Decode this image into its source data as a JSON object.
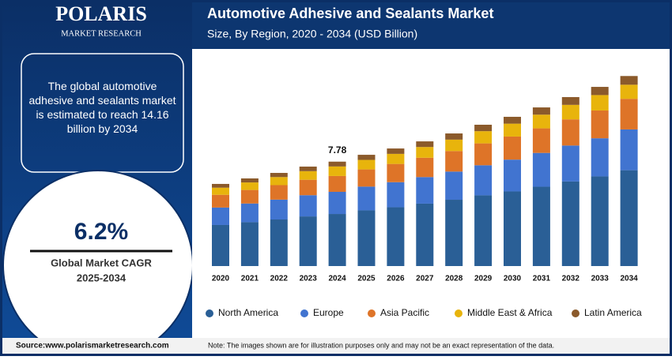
{
  "brand": {
    "name": "POLARIS",
    "tagline": "MARKET RESEARCH"
  },
  "summary": "The global automotive adhesive and sealants market is estimated to reach 14.16 billion by 2034",
  "cagr": {
    "value": "6.2%",
    "label": "Global Market CAGR",
    "period": "2025-2034"
  },
  "source": "Source:www.polarismarketresearch.com",
  "note": "Note: The images shown are for illustration purposes only and may not be an exact representation of the data.",
  "chart_data": {
    "type": "stacked-bar",
    "title": "Automotive Adhesive and Sealants Market",
    "subtitle": "Size, By Region, 2020 - 2034 (USD Billion)",
    "categories": [
      "2020",
      "2021",
      "2022",
      "2023",
      "2024",
      "2025",
      "2026",
      "2027",
      "2028",
      "2029",
      "2030",
      "2031",
      "2032",
      "2033",
      "2034"
    ],
    "series": [
      {
        "name": "North America",
        "color": "#2a5f96",
        "values": [
          3.06,
          3.27,
          3.47,
          3.7,
          3.88,
          4.15,
          4.38,
          4.65,
          4.94,
          5.27,
          5.56,
          5.91,
          6.3,
          6.68,
          7.14
        ]
      },
      {
        "name": "Europe",
        "color": "#4174d0",
        "values": [
          1.3,
          1.39,
          1.48,
          1.58,
          1.65,
          1.77,
          1.87,
          1.98,
          2.1,
          2.24,
          2.37,
          2.52,
          2.68,
          2.84,
          3.04
        ]
      },
      {
        "name": "Asia Pacific",
        "color": "#de7428",
        "values": [
          0.95,
          1.01,
          1.08,
          1.15,
          1.18,
          1.28,
          1.36,
          1.44,
          1.53,
          1.63,
          1.72,
          1.83,
          1.95,
          2.07,
          2.28
        ]
      },
      {
        "name": "Middle East & Africa",
        "color": "#e8b40c",
        "values": [
          0.53,
          0.56,
          0.6,
          0.64,
          0.71,
          0.71,
          0.75,
          0.8,
          0.85,
          0.91,
          0.96,
          1.02,
          1.08,
          1.15,
          1.05
        ]
      },
      {
        "name": "Latin America",
        "color": "#8b5a2b",
        "values": [
          0.28,
          0.3,
          0.31,
          0.34,
          0.36,
          0.38,
          0.4,
          0.42,
          0.46,
          0.48,
          0.51,
          0.54,
          0.58,
          0.61,
          0.65
        ]
      }
    ],
    "total_label": {
      "category": "2024",
      "value": 7.78
    }
  }
}
